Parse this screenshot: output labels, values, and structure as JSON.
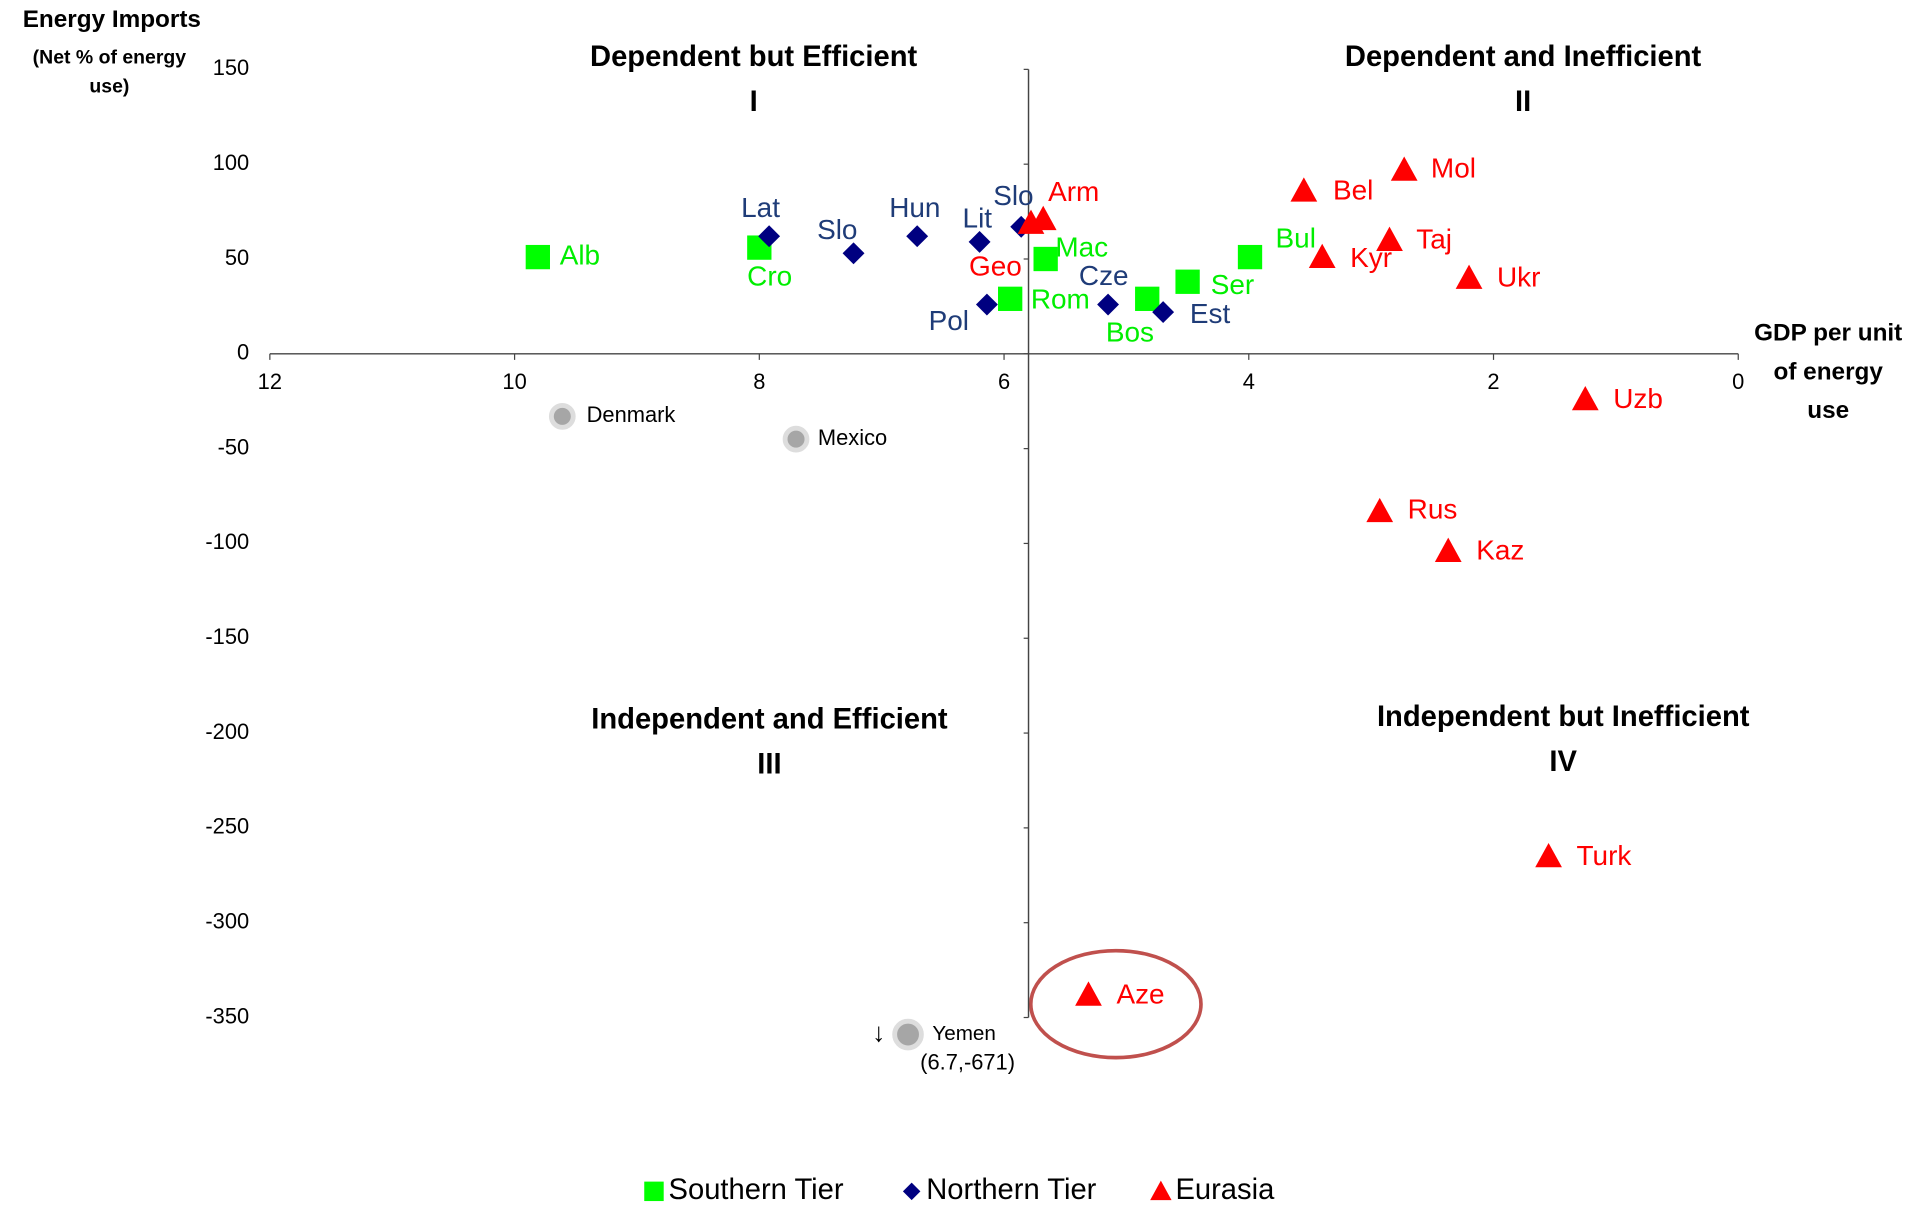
{
  "chart_data": {
    "type": "scatter",
    "y_axis_title": "Energy Imports",
    "y_axis_subtitle": "(Net % of energy use)",
    "x_axis_title": "GDP per unit of energy use",
    "xlim": [
      12,
      0
    ],
    "xticks": [
      12,
      10,
      8,
      6,
      4,
      2,
      0
    ],
    "ylim": [
      -350,
      150
    ],
    "yticks": [
      150,
      100,
      50,
      0,
      -50,
      -100,
      -150,
      -200,
      -250,
      -300,
      -350
    ],
    "x_cross": 5.8,
    "quadrants": [
      {
        "title": "Dependent but Efficient",
        "numeral": "I"
      },
      {
        "title": "Dependent and Inefficient",
        "numeral": "II"
      },
      {
        "title": "Independent and Efficient",
        "numeral": "III"
      },
      {
        "title": "Independent but Inefficient",
        "numeral": "IV"
      }
    ],
    "series": [
      {
        "name": "Southern Tier",
        "color": "#00ff00",
        "label_color": "#00ee00",
        "marker": "square",
        "labels": [
          "Alb",
          "Cro",
          "Rom",
          "Mac",
          "Bos",
          "Ser",
          "Bul"
        ],
        "x": [
          9.81,
          8.0,
          5.95,
          5.66,
          4.83,
          4.5,
          3.99
        ],
        "values": [
          51,
          56,
          29,
          50,
          29,
          38,
          51
        ]
      },
      {
        "name": "Northern Tier",
        "color": "#000080",
        "label_color": "#1f3c78",
        "marker": "diamond",
        "labels": [
          "Lat",
          "Slo",
          "Hun",
          "Lit",
          "Slo",
          "Pol",
          "Cze",
          "Est"
        ],
        "x": [
          7.92,
          7.23,
          6.71,
          6.2,
          5.86,
          6.14,
          5.15,
          4.7
        ],
        "values": [
          62,
          53,
          62,
          59,
          67,
          26,
          26,
          22
        ]
      },
      {
        "name": "Eurasia",
        "color": "#ff0000",
        "label_color": "#ff0000",
        "marker": "triangle",
        "labels": [
          "Arm",
          "Geo",
          "Bel",
          "Mol",
          "Kyr",
          "Taj",
          "Ukr",
          "Uzb",
          "Rus",
          "Kaz",
          "Turk",
          "Aze"
        ],
        "x": [
          5.68,
          5.78,
          3.55,
          2.73,
          3.4,
          2.85,
          2.2,
          1.25,
          2.93,
          2.37,
          1.55,
          5.31
        ],
        "values": [
          71,
          69,
          86,
          97,
          51,
          60,
          40,
          -24,
          -83,
          -104,
          -265,
          -338
        ]
      }
    ],
    "references": {
      "color": "#a6a6a6",
      "labels": [
        "Denmark",
        "Mexico"
      ],
      "x": [
        9.61,
        7.7
      ],
      "values": [
        -33,
        -45
      ]
    },
    "annotations": [
      "Yemen",
      "(6.7,-671)"
    ],
    "legend": "bottom"
  }
}
